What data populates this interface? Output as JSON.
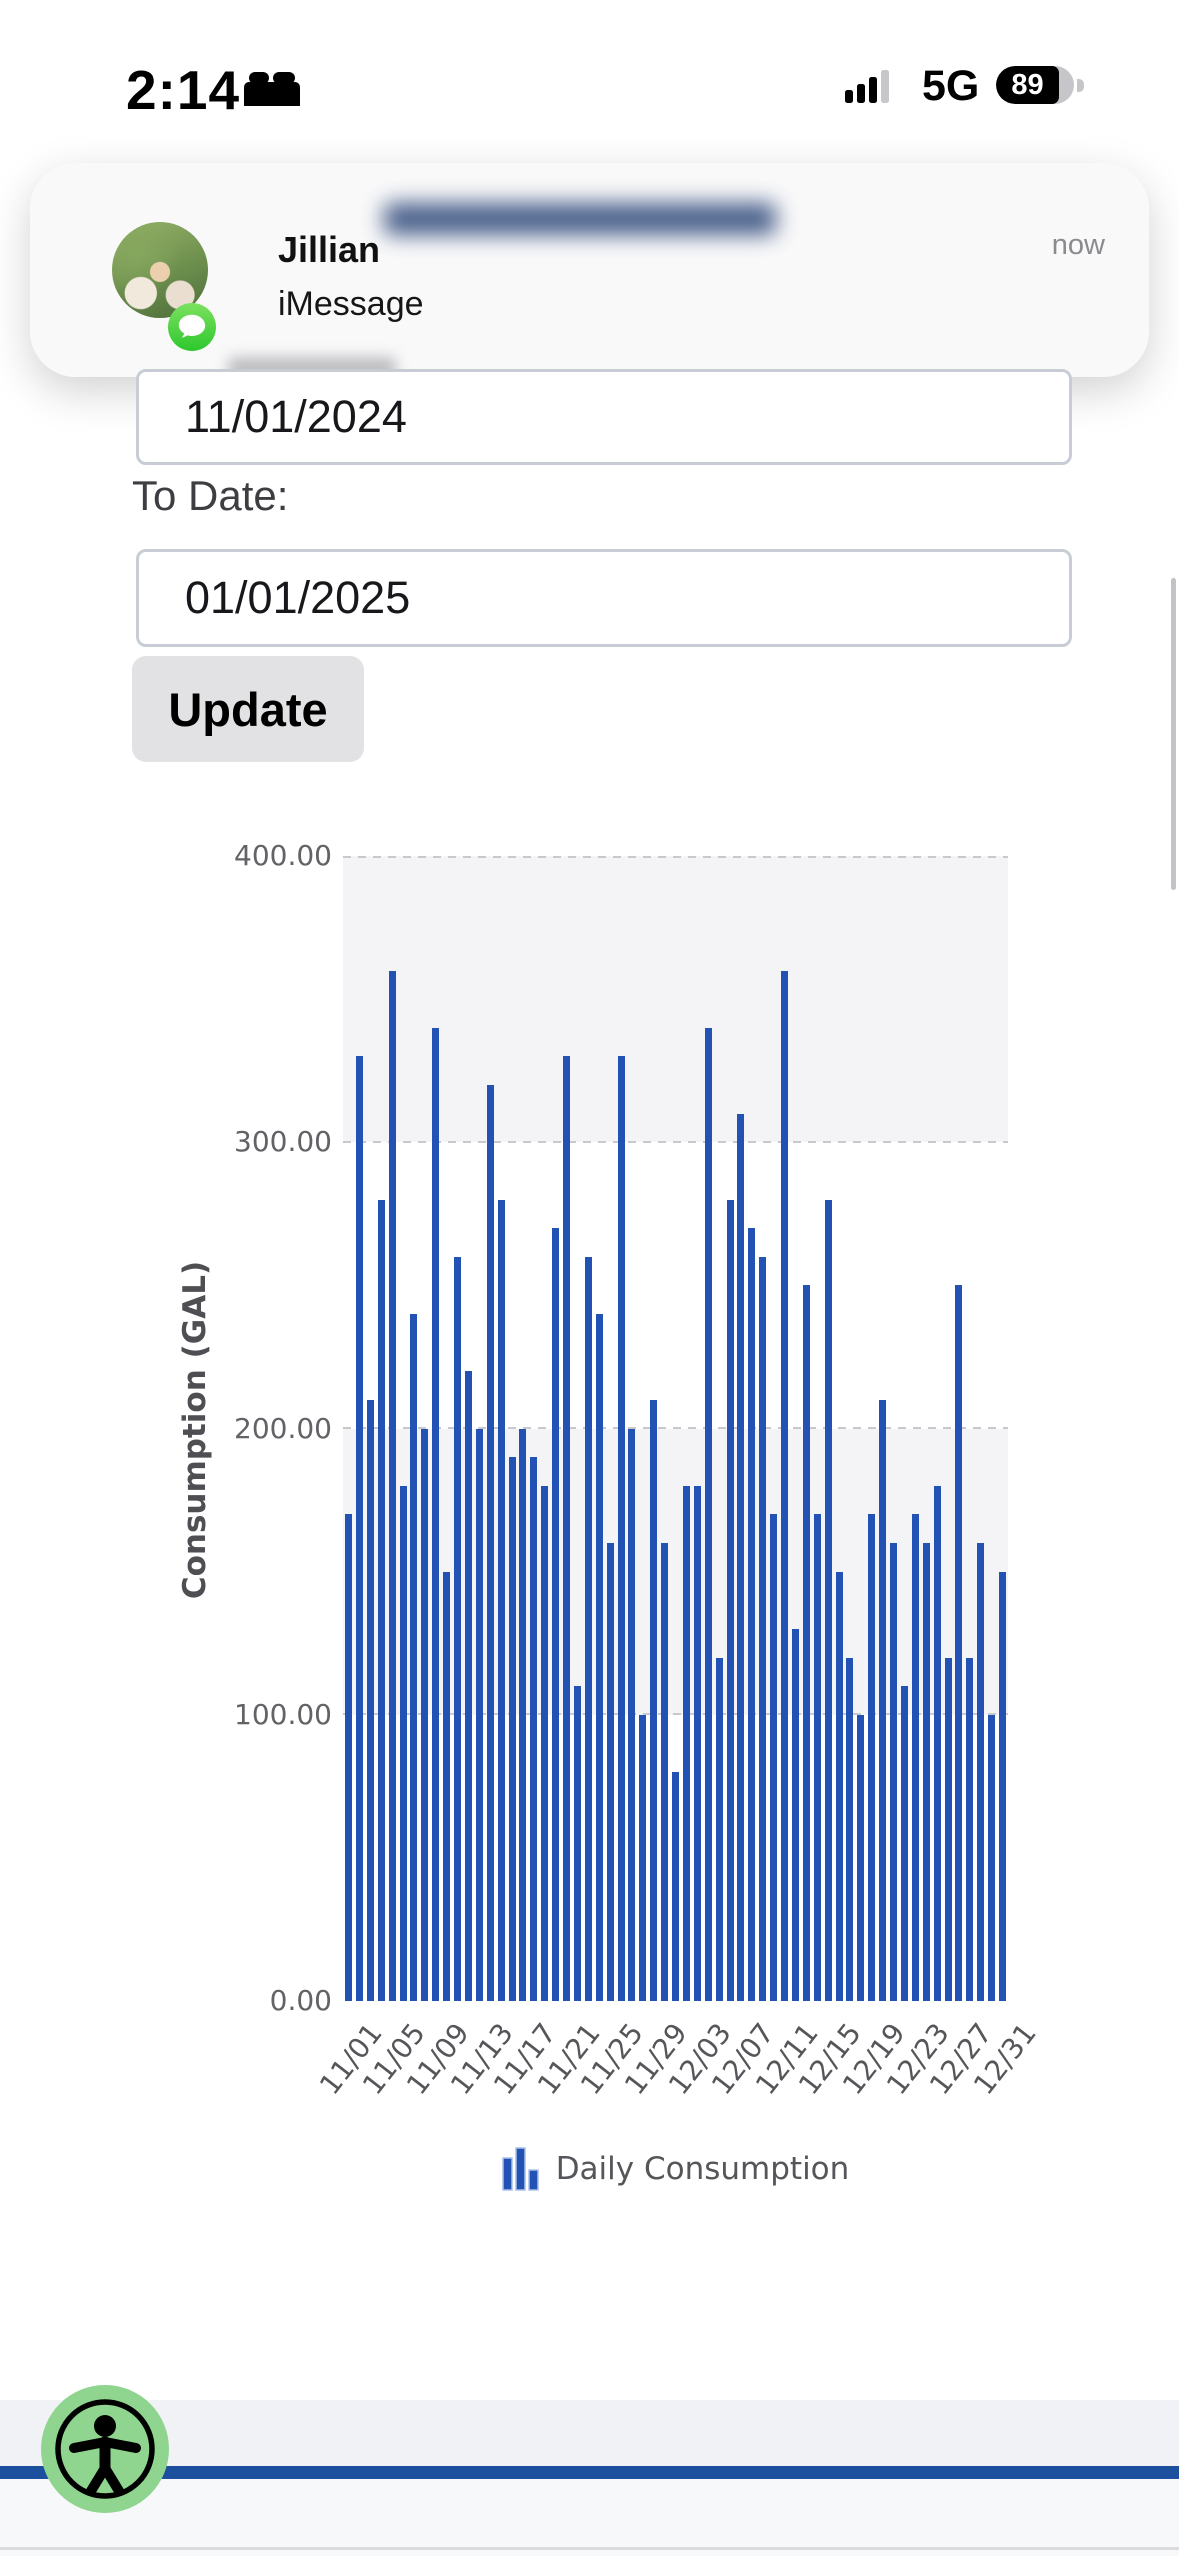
{
  "status_bar": {
    "time": "2:14",
    "network": "5G",
    "battery_percent": "89"
  },
  "notification": {
    "sender": "Jillian",
    "app": "iMessage",
    "time": "now"
  },
  "form": {
    "from_value": "11/01/2024",
    "to_label": "To Date:",
    "to_value": "01/01/2025",
    "update_label": "Update"
  },
  "chart_data": {
    "type": "bar",
    "title": "",
    "xlabel": "",
    "ylabel": "Consumption (GAL)",
    "ylim": [
      0,
      400
    ],
    "ytick_labels": [
      "400.00",
      "300.00",
      "200.00",
      "100.00",
      "0.00"
    ],
    "grid": "dashed horizontal lines every 100, alternating gray bands 100-200 and 300-400",
    "legend_position": "bottom center",
    "legend_label": "Daily Consumption",
    "xtick_labels": [
      "11/01",
      "11/05",
      "11/09",
      "11/13",
      "11/17",
      "11/21",
      "11/25",
      "11/29",
      "12/03",
      "12/07",
      "12/11",
      "12/15",
      "12/19",
      "12/23",
      "12/27",
      "12/31"
    ],
    "xtick_every": 4,
    "categories": [
      "11/01",
      "11/02",
      "11/03",
      "11/04",
      "11/05",
      "11/06",
      "11/07",
      "11/08",
      "11/09",
      "11/10",
      "11/11",
      "11/12",
      "11/13",
      "11/14",
      "11/15",
      "11/16",
      "11/17",
      "11/18",
      "11/19",
      "11/20",
      "11/21",
      "11/22",
      "11/23",
      "11/24",
      "11/25",
      "11/26",
      "11/27",
      "11/28",
      "11/29",
      "11/30",
      "12/01",
      "12/02",
      "12/03",
      "12/04",
      "12/05",
      "12/06",
      "12/07",
      "12/08",
      "12/09",
      "12/10",
      "12/11",
      "12/12",
      "12/13",
      "12/14",
      "12/15",
      "12/16",
      "12/17",
      "12/18",
      "12/19",
      "12/20",
      "12/21",
      "12/22",
      "12/23",
      "12/24",
      "12/25",
      "12/26",
      "12/27",
      "12/28",
      "12/29",
      "12/30",
      "12/31"
    ],
    "values": [
      170,
      330,
      210,
      280,
      360,
      180,
      240,
      200,
      340,
      150,
      260,
      220,
      200,
      320,
      280,
      190,
      200,
      190,
      180,
      270,
      330,
      110,
      260,
      240,
      160,
      330,
      200,
      100,
      210,
      160,
      80,
      180,
      180,
      340,
      120,
      280,
      310,
      270,
      260,
      170,
      360,
      130,
      250,
      170,
      280,
      150,
      120,
      100,
      170,
      210,
      160,
      110,
      170,
      160,
      180,
      120,
      250,
      120,
      160,
      100,
      150
    ]
  },
  "colors": {
    "bar": "#2253b4",
    "footer_navy": "#1d4f9f",
    "imessage_green": "#30c730",
    "accessibility_green": "#8fd58f",
    "band_gray": "#f4f4f7"
  }
}
